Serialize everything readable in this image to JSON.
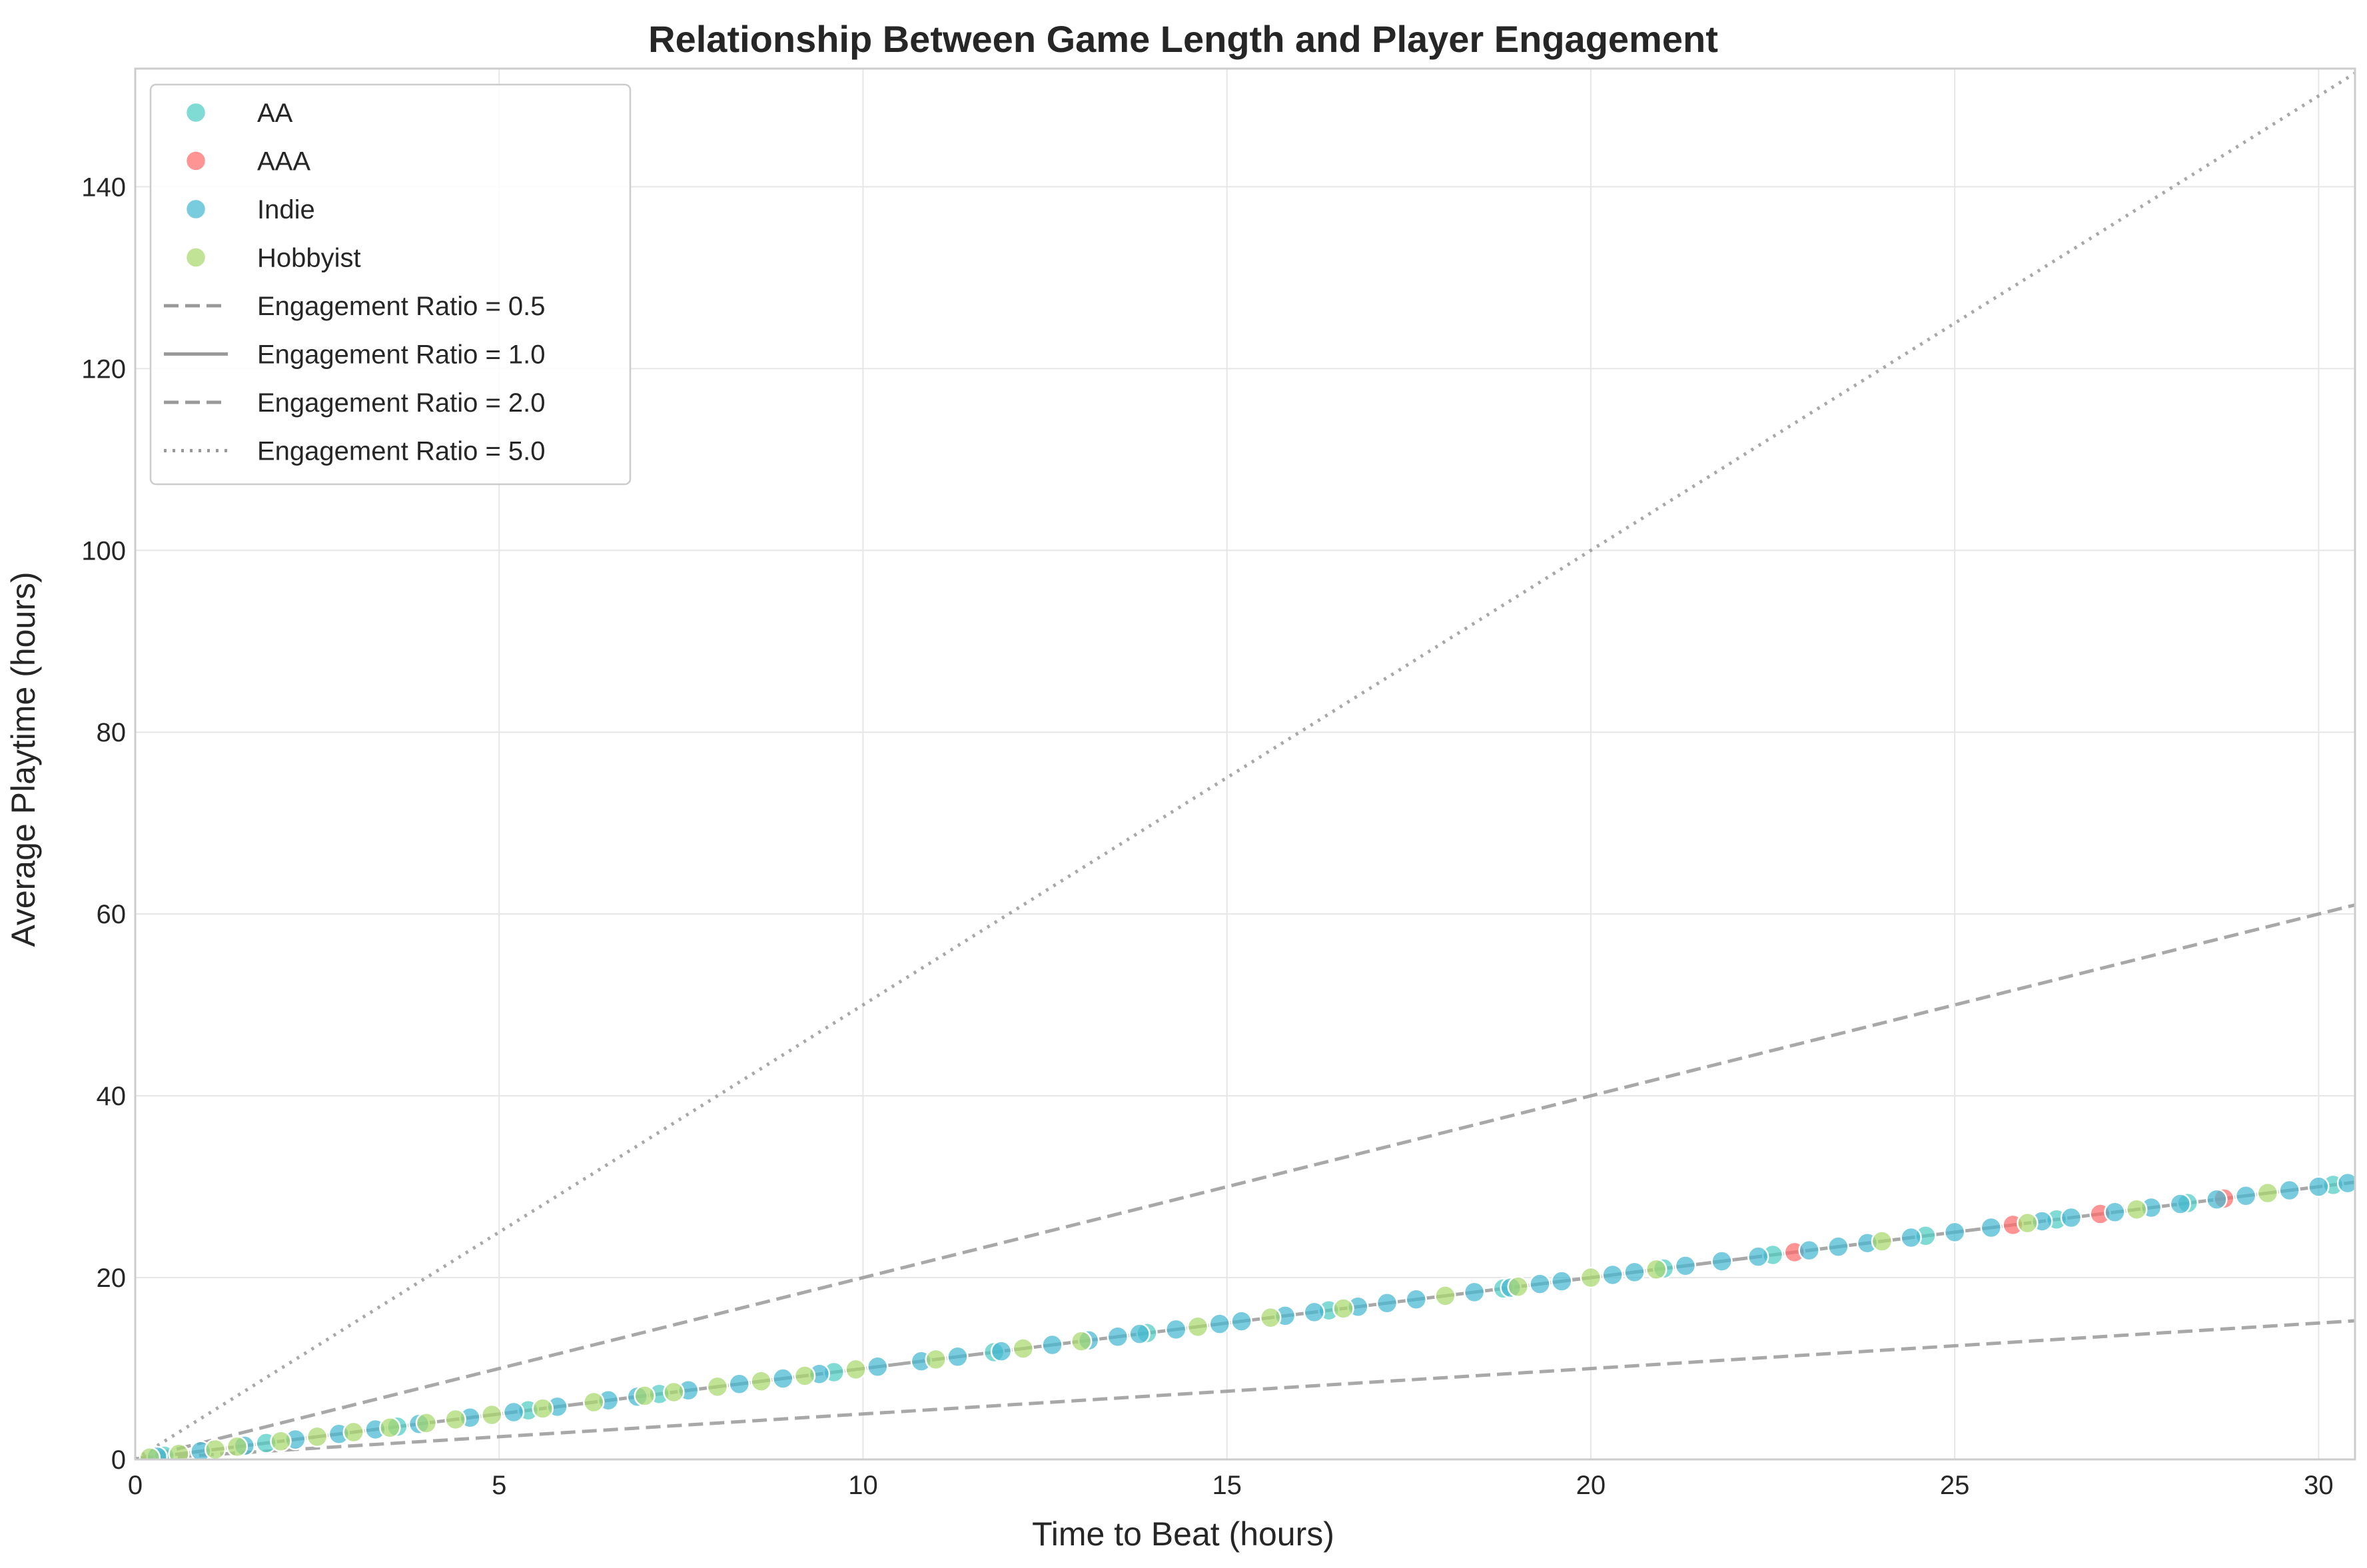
{
  "chart_data": {
    "type": "scatter",
    "title": "Relationship Between Game Length and Player Engagement",
    "xlabel": "Time to Beat (hours)",
    "ylabel": "Average Playtime (hours)",
    "xlim": [
      0,
      30.5
    ],
    "ylim": [
      0,
      153
    ],
    "xticks": [
      0,
      5,
      10,
      15,
      20,
      25,
      30
    ],
    "yticks": [
      0,
      20,
      40,
      60,
      80,
      100,
      120,
      140
    ],
    "grid": true,
    "legend_position": "top-left",
    "series": [
      {
        "name": "AA",
        "color": "#4ecdc4",
        "x": [
          0.4,
          1.8,
          3.6,
          5.4,
          7.2,
          9.6,
          11.8,
          13.9,
          16.4,
          18.8,
          21.0,
          22.5,
          24.6,
          26.4,
          28.2,
          30.2
        ],
        "y": [
          0.4,
          1.8,
          3.6,
          5.4,
          7.2,
          9.6,
          11.8,
          13.9,
          16.4,
          18.8,
          21.0,
          22.5,
          24.6,
          26.4,
          28.2,
          30.2
        ]
      },
      {
        "name": "AAA",
        "color": "#ff6b6b",
        "x": [
          22.8,
          25.8,
          27.0,
          28.7
        ],
        "y": [
          22.8,
          25.8,
          27.0,
          28.7
        ]
      },
      {
        "name": "Indie",
        "color": "#45b7d1",
        "x": [
          0.3,
          0.9,
          1.5,
          2.2,
          2.8,
          3.3,
          3.9,
          4.6,
          5.2,
          5.8,
          6.5,
          6.9,
          7.6,
          8.3,
          8.9,
          9.4,
          10.2,
          10.8,
          11.3,
          11.9,
          12.6,
          13.1,
          13.5,
          13.8,
          14.3,
          14.9,
          15.2,
          15.8,
          16.2,
          16.8,
          17.2,
          17.6,
          18.4,
          18.9,
          19.3,
          19.6,
          20.3,
          20.6,
          21.3,
          21.8,
          22.3,
          23.0,
          23.4,
          23.8,
          24.4,
          25.0,
          25.5,
          26.2,
          26.6,
          27.2,
          27.7,
          28.1,
          28.6,
          29.0,
          29.6,
          30.0,
          30.4
        ],
        "y": [
          0.3,
          0.9,
          1.5,
          2.2,
          2.8,
          3.3,
          3.9,
          4.6,
          5.2,
          5.8,
          6.5,
          6.9,
          7.6,
          8.3,
          8.9,
          9.4,
          10.2,
          10.8,
          11.3,
          11.9,
          12.6,
          13.1,
          13.5,
          13.8,
          14.3,
          14.9,
          15.2,
          15.8,
          16.2,
          16.8,
          17.2,
          17.6,
          18.4,
          18.9,
          19.3,
          19.6,
          20.3,
          20.6,
          21.3,
          21.8,
          22.3,
          23.0,
          23.4,
          23.8,
          24.4,
          25.0,
          25.5,
          26.2,
          26.6,
          27.2,
          27.7,
          28.1,
          28.6,
          29.0,
          29.6,
          30.0,
          30.4
        ]
      },
      {
        "name": "Hobbyist",
        "color": "#96ceb4",
        "x": [
          0.2,
          0.6,
          1.1,
          1.4,
          2.0,
          2.5,
          3.0,
          3.5,
          4.0,
          4.4,
          4.9,
          5.6,
          6.3,
          7.0,
          7.4,
          8.0,
          8.6,
          9.2,
          9.9,
          11.0,
          12.2,
          13.0,
          14.6,
          15.6,
          16.6,
          18.0,
          19.0,
          20.0,
          20.9,
          24.0,
          26.0,
          27.5,
          29.3
        ],
        "y": [
          0.2,
          0.6,
          1.1,
          1.4,
          2.0,
          2.5,
          3.0,
          3.5,
          4.0,
          4.4,
          4.9,
          5.6,
          6.3,
          7.0,
          7.4,
          8.0,
          8.6,
          9.2,
          9.9,
          11.0,
          12.2,
          13.0,
          14.6,
          15.6,
          16.6,
          18.0,
          19.0,
          20.0,
          20.9,
          24.0,
          26.0,
          27.5,
          29.3
        ]
      }
    ],
    "reference_lines": [
      {
        "name": "Engagement Ratio = 0.5",
        "ratio": 0.5,
        "style": "dashed"
      },
      {
        "name": "Engagement Ratio = 1.0",
        "ratio": 1.0,
        "style": "solid"
      },
      {
        "name": "Engagement Ratio = 2.0",
        "ratio": 2.0,
        "style": "dashed"
      },
      {
        "name": "Engagement Ratio = 5.0",
        "ratio": 5.0,
        "style": "dotted"
      }
    ],
    "reference_line_color": "#999999",
    "hobbyist_display_color": "#a8d86e"
  }
}
